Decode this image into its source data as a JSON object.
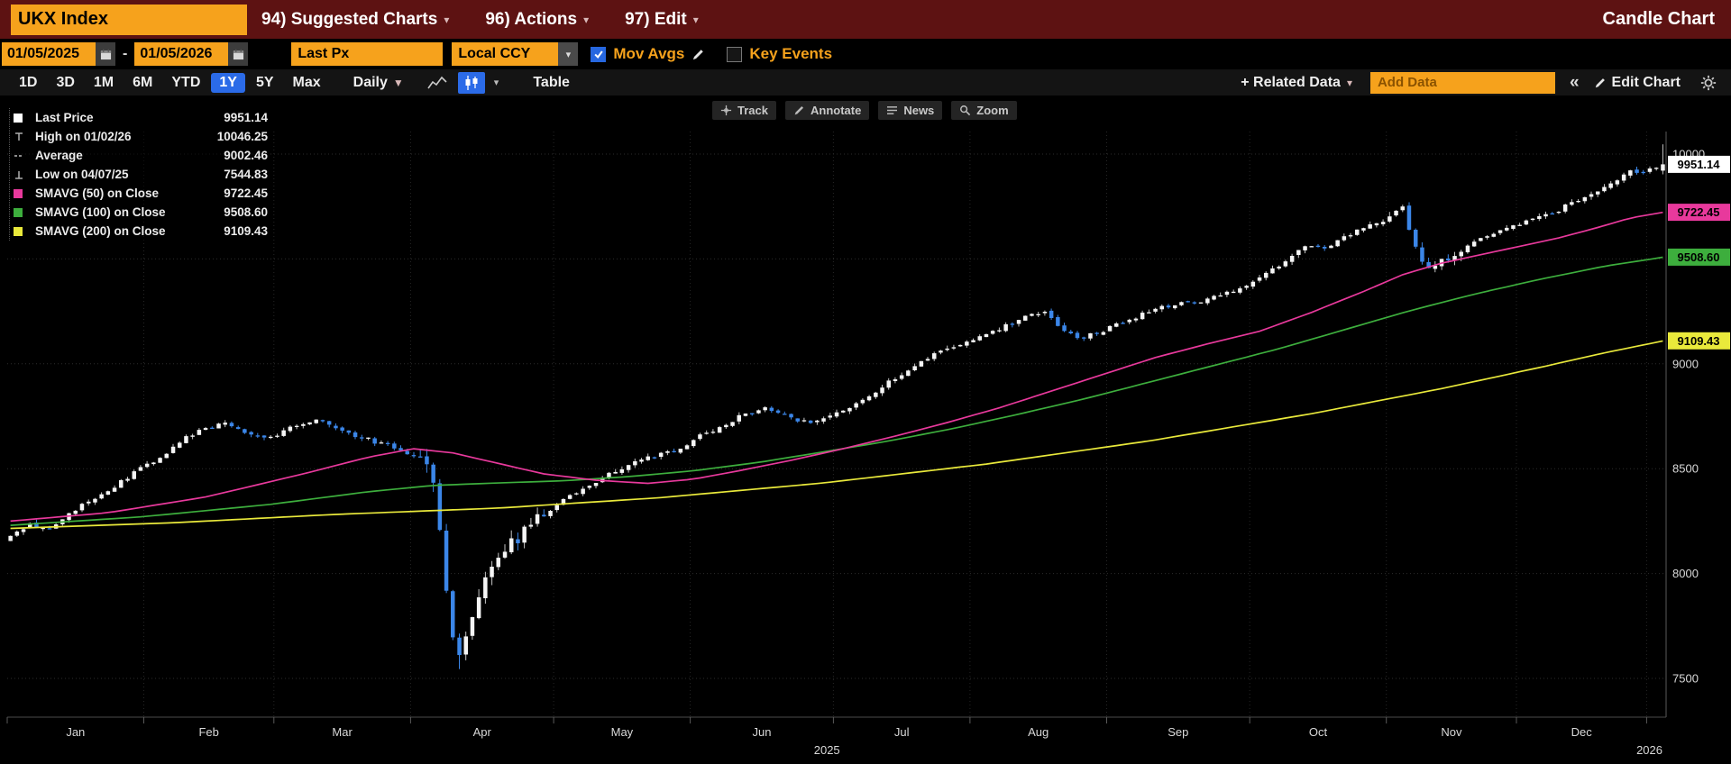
{
  "title_bar": {
    "security_input": "UKX Index",
    "menu_suggested_charts": "94) Suggested Charts",
    "menu_actions": "96) Actions",
    "menu_edit": "97) Edit",
    "right_title": "Candle Chart"
  },
  "controls_bar": {
    "date_from": "01/05/2025",
    "date_separator": "-",
    "date_to": "01/05/2026",
    "price_field": "Last Px",
    "currency": "Local CCY",
    "mov_avgs_label": "Mov Avgs",
    "mov_avgs_checked": true,
    "key_events_label": "Key Events",
    "key_events_checked": false
  },
  "toolbar": {
    "periods": [
      "1D",
      "3D",
      "1M",
      "6M",
      "YTD",
      "1Y",
      "5Y",
      "Max"
    ],
    "active_period": "1Y",
    "frequency": "Daily",
    "table_label": "Table",
    "related_data_label": "+ Related Data",
    "add_data_placeholder": "Add Data",
    "edit_chart_label": "Edit Chart"
  },
  "icons": {
    "caret_down": "▾",
    "caret_down_solid": "▼",
    "collapse_chevrons": "«"
  },
  "chart_tools": {
    "track": "Track",
    "annotate": "Annotate",
    "news": "News",
    "zoom": "Zoom"
  },
  "legend": {
    "rows": [
      {
        "label": "Last Price",
        "value": "9951.14"
      },
      {
        "label": "High on 01/02/26",
        "value": "10046.25"
      },
      {
        "label": "Average",
        "value": "9002.46"
      },
      {
        "label": "Low on 04/07/25",
        "value": "7544.83"
      },
      {
        "label": "SMAVG (50) on Close",
        "value": "9722.45"
      },
      {
        "label": "SMAVG (100) on Close",
        "value": "9508.60"
      },
      {
        "label": "SMAVG (200) on Close",
        "value": "9109.43"
      }
    ]
  },
  "chart_data": {
    "type": "candlestick",
    "symbol": "UKX Index",
    "range": "01/05/2025 - 01/05/2026",
    "frequency": "Daily",
    "y_axis": {
      "min": 7400,
      "max": 10100,
      "ticks": [
        10000,
        9500,
        9000,
        8500,
        8000,
        7500
      ]
    },
    "x_axis": {
      "month_labels": [
        "Jan",
        "Feb",
        "Mar",
        "Apr",
        "May",
        "Jun",
        "Jul",
        "Aug",
        "Sep",
        "Oct",
        "Nov",
        "Dec"
      ],
      "year_center": "2025",
      "year_right": "2026"
    },
    "trading_days": 255,
    "month_start_days": [
      0,
      21,
      41,
      62,
      84,
      105,
      127,
      148,
      169,
      191,
      212,
      232
    ],
    "year_boundary_day": 252,
    "stats": {
      "last_price": 9951.14,
      "high_value": 10046.25,
      "high_date": "01/02/26",
      "average": 9002.46,
      "low_value": 7544.83,
      "low_date": "04/07/25",
      "low_day_index": 69
    },
    "candle_up_color": "#F5F5F5",
    "candle_down_color": "#3B86E8",
    "close_trend_anchors": [
      [
        0,
        8170
      ],
      [
        3,
        8235
      ],
      [
        6,
        8210
      ],
      [
        9,
        8290
      ],
      [
        12,
        8345
      ],
      [
        15,
        8395
      ],
      [
        18,
        8460
      ],
      [
        21,
        8520
      ],
      [
        24,
        8575
      ],
      [
        27,
        8645
      ],
      [
        30,
        8690
      ],
      [
        33,
        8720
      ],
      [
        36,
        8680
      ],
      [
        39,
        8645
      ],
      [
        41,
        8665
      ],
      [
        44,
        8710
      ],
      [
        47,
        8735
      ],
      [
        50,
        8690
      ],
      [
        53,
        8655
      ],
      [
        56,
        8630
      ],
      [
        59,
        8600
      ],
      [
        62,
        8560
      ],
      [
        64,
        8490
      ],
      [
        65,
        8420
      ],
      [
        66,
        8190
      ],
      [
        67,
        7920
      ],
      [
        68,
        7690
      ],
      [
        69,
        7590
      ],
      [
        70,
        7670
      ],
      [
        71,
        7765
      ],
      [
        72,
        7890
      ],
      [
        74,
        8040
      ],
      [
        77,
        8145
      ],
      [
        80,
        8225
      ],
      [
        82,
        8285
      ],
      [
        84,
        8330
      ],
      [
        88,
        8410
      ],
      [
        92,
        8470
      ],
      [
        96,
        8530
      ],
      [
        100,
        8570
      ],
      [
        103,
        8600
      ],
      [
        105,
        8640
      ],
      [
        109,
        8700
      ],
      [
        113,
        8760
      ],
      [
        116,
        8790
      ],
      [
        119,
        8760
      ],
      [
        123,
        8710
      ],
      [
        126,
        8745
      ],
      [
        130,
        8815
      ],
      [
        134,
        8890
      ],
      [
        138,
        8970
      ],
      [
        142,
        9040
      ],
      [
        145,
        9080
      ],
      [
        148,
        9110
      ],
      [
        152,
        9165
      ],
      [
        156,
        9225
      ],
      [
        159,
        9245
      ],
      [
        162,
        9150
      ],
      [
        165,
        9125
      ],
      [
        168,
        9160
      ],
      [
        172,
        9210
      ],
      [
        176,
        9260
      ],
      [
        180,
        9285
      ],
      [
        184,
        9305
      ],
      [
        188,
        9345
      ],
      [
        191,
        9395
      ],
      [
        195,
        9470
      ],
      [
        199,
        9560
      ],
      [
        202,
        9545
      ],
      [
        205,
        9605
      ],
      [
        209,
        9660
      ],
      [
        212,
        9695
      ],
      [
        214,
        9765
      ],
      [
        216,
        9545
      ],
      [
        218,
        9455
      ],
      [
        221,
        9505
      ],
      [
        224,
        9570
      ],
      [
        228,
        9625
      ],
      [
        231,
        9655
      ],
      [
        234,
        9685
      ],
      [
        238,
        9735
      ],
      [
        242,
        9795
      ],
      [
        246,
        9865
      ],
      [
        249,
        9915
      ],
      [
        252,
        9930
      ],
      [
        254,
        9950
      ]
    ],
    "smavg50": {
      "label": "SMAVG (50) on Close",
      "last": 9722.45,
      "color": "#E8399C",
      "anchors": [
        [
          0,
          8250
        ],
        [
          15,
          8290
        ],
        [
          30,
          8365
        ],
        [
          45,
          8475
        ],
        [
          55,
          8555
        ],
        [
          62,
          8595
        ],
        [
          68,
          8575
        ],
        [
          75,
          8525
        ],
        [
          82,
          8475
        ],
        [
          90,
          8445
        ],
        [
          98,
          8430
        ],
        [
          105,
          8450
        ],
        [
          112,
          8490
        ],
        [
          120,
          8540
        ],
        [
          128,
          8595
        ],
        [
          136,
          8655
        ],
        [
          144,
          8720
        ],
        [
          152,
          8790
        ],
        [
          160,
          8870
        ],
        [
          168,
          8950
        ],
        [
          176,
          9030
        ],
        [
          184,
          9095
        ],
        [
          192,
          9155
        ],
        [
          200,
          9245
        ],
        [
          208,
          9345
        ],
        [
          214,
          9425
        ],
        [
          220,
          9480
        ],
        [
          226,
          9520
        ],
        [
          232,
          9560
        ],
        [
          238,
          9600
        ],
        [
          244,
          9650
        ],
        [
          249,
          9695
        ],
        [
          254,
          9722
        ]
      ]
    },
    "smavg100": {
      "label": "SMAVG (100) on Close",
      "last": 9508.6,
      "color": "#3DAE3D",
      "anchors": [
        [
          0,
          8230
        ],
        [
          20,
          8270
        ],
        [
          40,
          8330
        ],
        [
          55,
          8390
        ],
        [
          65,
          8420
        ],
        [
          75,
          8432
        ],
        [
          85,
          8442
        ],
        [
          95,
          8462
        ],
        [
          105,
          8490
        ],
        [
          115,
          8530
        ],
        [
          125,
          8580
        ],
        [
          135,
          8632
        ],
        [
          145,
          8692
        ],
        [
          155,
          8760
        ],
        [
          165,
          8832
        ],
        [
          175,
          8912
        ],
        [
          185,
          8992
        ],
        [
          195,
          9072
        ],
        [
          205,
          9162
        ],
        [
          215,
          9252
        ],
        [
          225,
          9332
        ],
        [
          235,
          9402
        ],
        [
          245,
          9465
        ],
        [
          254,
          9508
        ]
      ]
    },
    "smavg200": {
      "label": "SMAVG (200) on Close",
      "last": 9109.43,
      "color": "#E9E93B",
      "anchors": [
        [
          0,
          8215
        ],
        [
          25,
          8242
        ],
        [
          50,
          8282
        ],
        [
          75,
          8312
        ],
        [
          100,
          8362
        ],
        [
          125,
          8432
        ],
        [
          150,
          8522
        ],
        [
          175,
          8632
        ],
        [
          200,
          8762
        ],
        [
          220,
          8882
        ],
        [
          235,
          8982
        ],
        [
          245,
          9052
        ],
        [
          254,
          9109
        ]
      ]
    },
    "price_tags": [
      {
        "value": 9951.14,
        "text": "9951.14",
        "bg": "#FFFFFF"
      },
      {
        "value": 9722.45,
        "text": "9722.45",
        "bg": "#E8399C"
      },
      {
        "value": 9508.6,
        "text": "9508.60",
        "bg": "#3DAE3D"
      },
      {
        "value": 9109.43,
        "text": "9109.43",
        "bg": "#E9E93B"
      }
    ]
  }
}
